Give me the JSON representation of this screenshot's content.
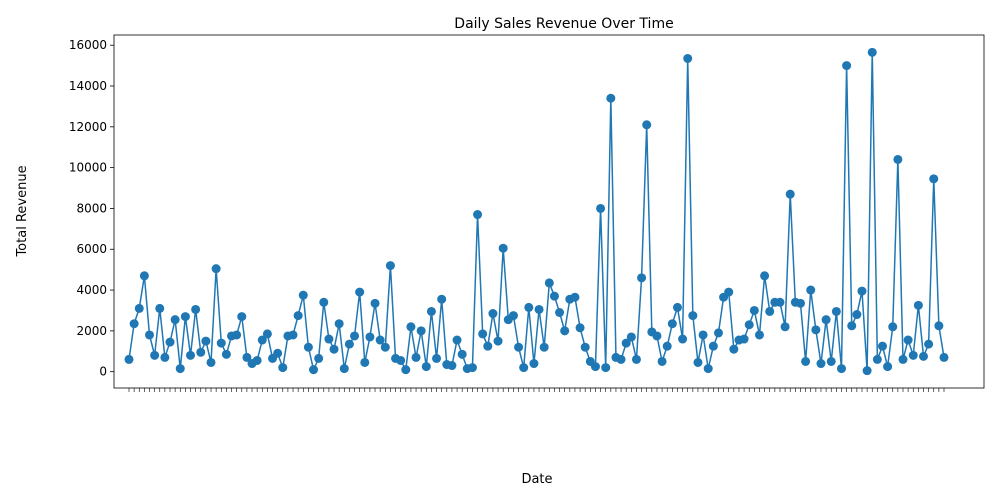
{
  "chart_data": {
    "type": "line",
    "title": "Daily Sales Revenue Over Time",
    "xlabel": "Date",
    "ylabel": "Total Revenue",
    "ylim": [
      -800,
      16500
    ],
    "yticks": [
      0,
      2000,
      4000,
      6000,
      8000,
      10000,
      12000,
      14000,
      16000
    ],
    "grid": false,
    "legend": "none",
    "color": "#1f77b4",
    "series": [
      {
        "values": [
          600,
          2350,
          3100,
          4700,
          1800,
          800,
          3100,
          700,
          1450,
          2550,
          150,
          2700,
          800,
          3050,
          950,
          1500,
          450,
          5050,
          1400,
          850,
          1750,
          1800,
          2700,
          700,
          400,
          550,
          1550,
          1850,
          650,
          900,
          200,
          1750,
          1800,
          2750,
          3750,
          1200,
          100,
          650,
          3400,
          1600,
          1100,
          2350,
          150,
          1350,
          1750,
          3900,
          450,
          1700,
          3350,
          1550,
          1200,
          5200,
          650,
          550,
          100,
          2200,
          700,
          2000,
          250,
          2950,
          650,
          3550,
          350,
          300,
          1550,
          850,
          150,
          200,
          7700,
          1850,
          1250,
          2850,
          1500,
          6050,
          2550,
          2750,
          1200,
          200,
          3150,
          400,
          3050,
          1200,
          4350,
          3700,
          2900,
          2000,
          3550,
          3650,
          2150,
          1200,
          500,
          250,
          8000,
          200,
          13400,
          700,
          600,
          1400,
          1700,
          600,
          4600,
          12100,
          1950,
          1750,
          500,
          1250,
          2350,
          3150,
          1600,
          15350,
          2750,
          450,
          1800,
          150,
          1250,
          1900,
          3650,
          3900,
          1100,
          1550,
          1600,
          2300,
          3000,
          1800,
          4700,
          2950,
          3400,
          3400,
          2200,
          8700,
          3400,
          3350,
          500,
          4000,
          2050,
          400,
          2550,
          500,
          2950,
          150,
          15000,
          2250,
          2800,
          3950,
          50,
          15650,
          600,
          1250,
          250,
          2200,
          10400,
          600,
          1550,
          800,
          3250,
          750,
          1350,
          9450,
          2250,
          700
        ]
      }
    ]
  }
}
